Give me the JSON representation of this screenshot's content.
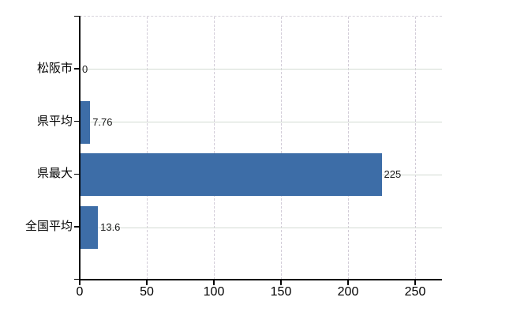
{
  "chart_data": {
    "type": "bar",
    "orientation": "horizontal",
    "title": "",
    "xlabel": "",
    "ylabel": "",
    "categories": [
      "松阪市",
      "県平均",
      "県最大",
      "全国平均"
    ],
    "values": [
      0,
      7.76,
      225,
      13.6
    ],
    "value_labels": [
      "0",
      "7.76",
      "225",
      "13.6"
    ],
    "x_ticks": [
      0,
      50,
      100,
      150,
      200,
      250
    ],
    "x_tick_labels": [
      "0",
      "50",
      "100",
      "150",
      "200",
      "250"
    ],
    "xlim": [
      0,
      270
    ],
    "grid": true,
    "legend_position": "none",
    "colors": {
      "bar": "#3d6da7",
      "axis": "#000000",
      "horizontal_gridline": "#d3dbd3",
      "vertical_gridline": "#d2ccd8",
      "plot_top_border": "#d6d2da",
      "value_label_text": "#1b1b1b",
      "tick_label_text": "#000000",
      "background": "#ffffff"
    }
  }
}
